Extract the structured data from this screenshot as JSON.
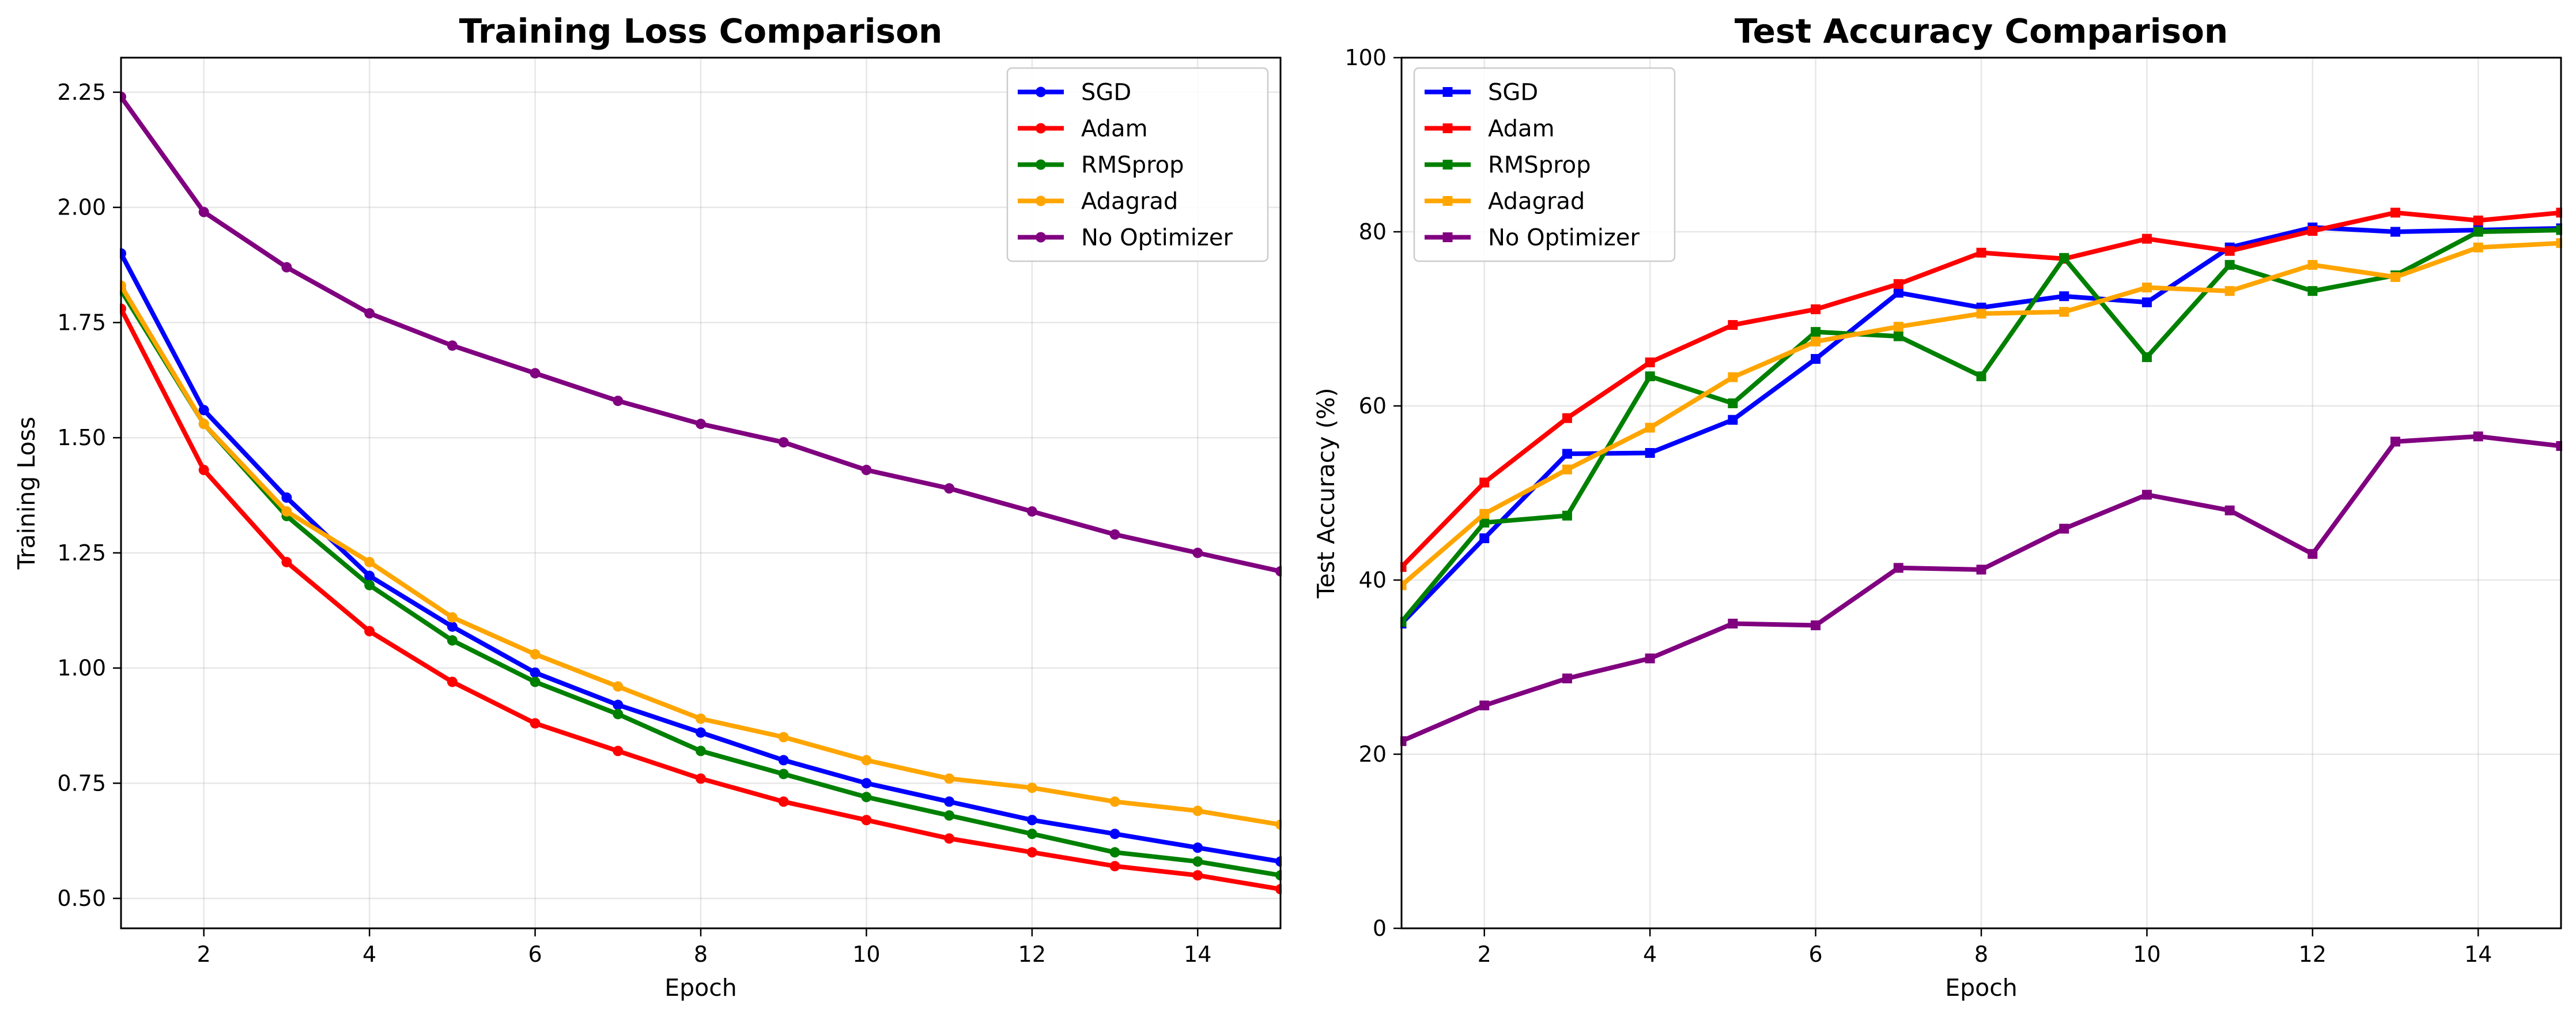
{
  "chart_data": [
    {
      "type": "line",
      "title": "Training Loss Comparison",
      "xlabel": "Epoch",
      "ylabel": "Training Loss",
      "xlim": [
        1,
        15
      ],
      "ylim": [
        0.435,
        2.325
      ],
      "xticks": [
        2,
        4,
        6,
        8,
        10,
        12,
        14
      ],
      "yticks": [
        0.5,
        0.75,
        1.0,
        1.25,
        1.5,
        1.75,
        2.0,
        2.25
      ],
      "ytick_labels": [
        "0.50",
        "0.75",
        "1.00",
        "1.25",
        "1.50",
        "1.75",
        "2.00",
        "2.25"
      ],
      "grid": true,
      "legend_position": "top-right",
      "marker": "circle",
      "x": [
        1,
        2,
        3,
        4,
        5,
        6,
        7,
        8,
        9,
        10,
        11,
        12,
        13,
        14,
        15
      ],
      "series": [
        {
          "name": "SGD",
          "color": "#0000ff",
          "values": [
            1.9,
            1.56,
            1.37,
            1.2,
            1.09,
            0.99,
            0.92,
            0.86,
            0.8,
            0.75,
            0.71,
            0.67,
            0.64,
            0.61,
            0.58
          ]
        },
        {
          "name": "Adam",
          "color": "#ff0000",
          "values": [
            1.78,
            1.43,
            1.23,
            1.08,
            0.97,
            0.88,
            0.82,
            0.76,
            0.71,
            0.67,
            0.63,
            0.6,
            0.57,
            0.55,
            0.52
          ]
        },
        {
          "name": "RMSprop",
          "color": "#008000",
          "values": [
            1.82,
            1.53,
            1.33,
            1.18,
            1.06,
            0.97,
            0.9,
            0.82,
            0.77,
            0.72,
            0.68,
            0.64,
            0.6,
            0.58,
            0.55
          ]
        },
        {
          "name": "Adagrad",
          "color": "#ffa500",
          "values": [
            1.83,
            1.53,
            1.34,
            1.23,
            1.11,
            1.03,
            0.96,
            0.89,
            0.85,
            0.8,
            0.76,
            0.74,
            0.71,
            0.69,
            0.66
          ]
        },
        {
          "name": "No Optimizer",
          "color": "#800080",
          "values": [
            2.24,
            1.99,
            1.87,
            1.77,
            1.7,
            1.64,
            1.58,
            1.53,
            1.49,
            1.43,
            1.39,
            1.34,
            1.29,
            1.25,
            1.21
          ]
        }
      ]
    },
    {
      "type": "line",
      "title": "Test Accuracy Comparison",
      "xlabel": "Epoch",
      "ylabel": "Test Accuracy (%)",
      "xlim": [
        1,
        15
      ],
      "ylim": [
        0,
        100
      ],
      "xticks": [
        2,
        4,
        6,
        8,
        10,
        12,
        14
      ],
      "yticks": [
        0,
        20,
        40,
        60,
        80,
        100
      ],
      "ytick_labels": [
        "0",
        "20",
        "40",
        "60",
        "80",
        "100"
      ],
      "grid": true,
      "legend_position": "top-left",
      "marker": "square",
      "x": [
        1,
        2,
        3,
        4,
        5,
        6,
        7,
        8,
        9,
        10,
        11,
        12,
        13,
        14,
        15
      ],
      "series": [
        {
          "name": "SGD",
          "color": "#0000ff",
          "values": [
            35.0,
            44.8,
            54.5,
            54.6,
            58.4,
            65.4,
            73.0,
            71.3,
            72.6,
            71.9,
            78.2,
            80.5,
            80.0,
            80.2,
            80.4
          ]
        },
        {
          "name": "Adam",
          "color": "#ff0000",
          "values": [
            41.5,
            51.2,
            58.6,
            65.0,
            69.3,
            71.1,
            74.0,
            77.6,
            76.9,
            79.2,
            77.8,
            80.1,
            82.2,
            81.3,
            82.2
          ]
        },
        {
          "name": "RMSprop",
          "color": "#008000",
          "values": [
            35.2,
            46.6,
            47.4,
            63.4,
            60.3,
            68.5,
            68.0,
            63.4,
            77.0,
            65.6,
            76.2,
            73.2,
            75.0,
            80.0,
            80.2
          ]
        },
        {
          "name": "Adagrad",
          "color": "#ffa500",
          "values": [
            39.4,
            47.6,
            52.7,
            57.5,
            63.3,
            67.4,
            69.1,
            70.6,
            70.8,
            73.6,
            73.2,
            76.2,
            74.8,
            78.2,
            78.7
          ]
        },
        {
          "name": "No Optimizer",
          "color": "#800080",
          "values": [
            21.5,
            25.6,
            28.7,
            31.0,
            35.0,
            34.8,
            41.4,
            41.2,
            45.9,
            49.8,
            48.0,
            43.0,
            55.9,
            56.5,
            55.4
          ]
        }
      ]
    }
  ]
}
